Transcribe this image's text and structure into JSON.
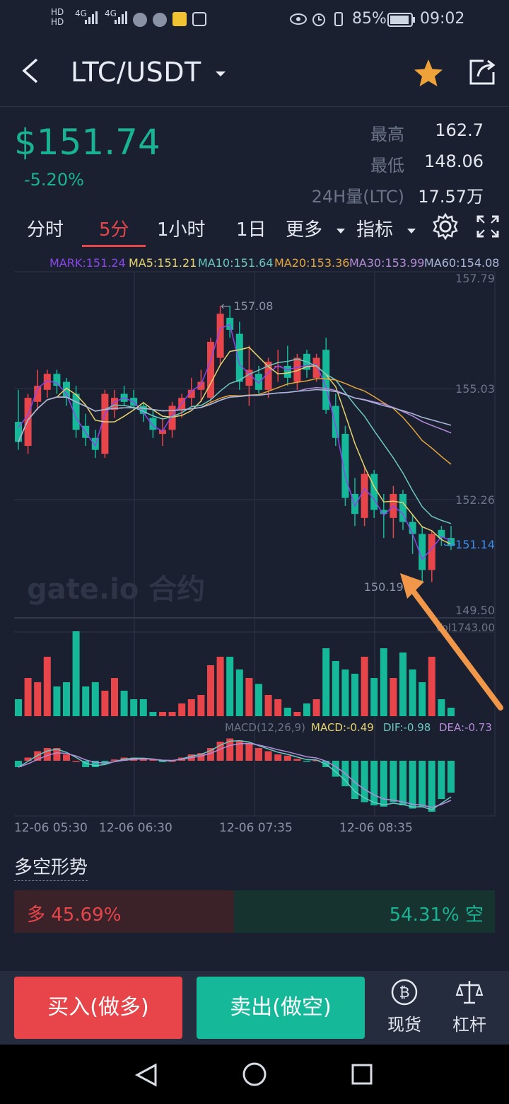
{
  "status_bar": {
    "network1": "4G",
    "network2": "4G",
    "battery": "85%",
    "time": "09:02"
  },
  "header": {
    "title": "LTC/USDT",
    "back_icon": "back-arrow-icon",
    "favorite_icon": "star-icon",
    "share_icon": "share-icon"
  },
  "ticker": {
    "price": "$151.74",
    "change": "-5.20%",
    "high_label": "最高",
    "high_value": "162.7",
    "low_label": "最低",
    "low_value": "148.06",
    "volume_label": "24H量(LTC)",
    "volume_value": "17.57万"
  },
  "tabs": [
    {
      "label": "分时"
    },
    {
      "label": "5分",
      "active": true
    },
    {
      "label": "1小时"
    },
    {
      "label": "1日"
    },
    {
      "label": "更多"
    },
    {
      "label": "指标"
    }
  ],
  "legend": {
    "mark": "MARK:151.24",
    "ma5": "MA5:151.21",
    "ma10": "MA10:151.64",
    "ma20": "MA20:153.36",
    "ma30": "MA30:153.99",
    "ma60": "MA60:154.08"
  },
  "watermark": "gate.io 合约",
  "chart_data": {
    "type": "candlestick",
    "price_axis": [
      "157.79",
      "155.03",
      "152.26",
      "149.50"
    ],
    "current_price_label": "151.14",
    "high_annotation": "157.08",
    "low_annotation": "150.19",
    "vol_label": "Vol1743.00",
    "macd_label": "MACD(12,26,9)",
    "macd_value": "MACD:-0.49",
    "dif_value": "DIF:-0.98",
    "dea_value": "DEA:-0.73",
    "time_labels": [
      "12-06 05:30",
      "12-06 06:30",
      "12-06 07:35",
      "12-06 08:35"
    ],
    "candles": [
      {
        "o": 154.2,
        "h": 155.0,
        "l": 153.5,
        "c": 153.7
      },
      {
        "o": 153.6,
        "h": 154.9,
        "l": 153.4,
        "c": 154.8
      },
      {
        "o": 154.7,
        "h": 155.5,
        "l": 154.5,
        "c": 155.1
      },
      {
        "o": 155.0,
        "h": 155.5,
        "l": 154.8,
        "c": 155.4
      },
      {
        "o": 155.4,
        "h": 155.5,
        "l": 154.9,
        "c": 155.1
      },
      {
        "o": 155.2,
        "h": 155.3,
        "l": 154.6,
        "c": 154.8
      },
      {
        "o": 154.9,
        "h": 155.1,
        "l": 153.8,
        "c": 154.0
      },
      {
        "o": 154.1,
        "h": 154.4,
        "l": 153.6,
        "c": 153.8
      },
      {
        "o": 153.8,
        "h": 154.0,
        "l": 153.3,
        "c": 153.5
      },
      {
        "o": 153.4,
        "h": 155.0,
        "l": 153.3,
        "c": 154.9
      },
      {
        "o": 154.5,
        "h": 155.0,
        "l": 154.3,
        "c": 154.8
      },
      {
        "o": 154.9,
        "h": 155.1,
        "l": 154.6,
        "c": 154.7
      },
      {
        "o": 154.8,
        "h": 155.0,
        "l": 154.5,
        "c": 154.6
      },
      {
        "o": 154.6,
        "h": 154.7,
        "l": 154.2,
        "c": 154.4
      },
      {
        "o": 154.3,
        "h": 154.5,
        "l": 153.8,
        "c": 154.0
      },
      {
        "o": 153.9,
        "h": 154.3,
        "l": 153.6,
        "c": 154.0
      },
      {
        "o": 154.0,
        "h": 154.7,
        "l": 153.8,
        "c": 154.6
      },
      {
        "o": 154.5,
        "h": 154.9,
        "l": 154.3,
        "c": 154.8
      },
      {
        "o": 154.8,
        "h": 155.3,
        "l": 154.6,
        "c": 155.0
      },
      {
        "o": 155.0,
        "h": 155.5,
        "l": 154.7,
        "c": 155.2
      },
      {
        "o": 154.8,
        "h": 156.3,
        "l": 154.7,
        "c": 156.2
      },
      {
        "o": 155.8,
        "h": 157.1,
        "l": 155.6,
        "c": 156.9
      },
      {
        "o": 156.8,
        "h": 157.1,
        "l": 156.3,
        "c": 156.5
      },
      {
        "o": 156.4,
        "h": 156.7,
        "l": 155.0,
        "c": 155.2
      },
      {
        "o": 155.1,
        "h": 156.1,
        "l": 154.6,
        "c": 155.5
      },
      {
        "o": 155.4,
        "h": 155.6,
        "l": 154.9,
        "c": 155.0
      },
      {
        "o": 155.0,
        "h": 155.8,
        "l": 154.8,
        "c": 155.7
      },
      {
        "o": 155.6,
        "h": 156.0,
        "l": 155.2,
        "c": 155.6
      },
      {
        "o": 155.6,
        "h": 156.1,
        "l": 155.1,
        "c": 155.3
      },
      {
        "o": 155.2,
        "h": 155.9,
        "l": 155.0,
        "c": 155.8
      },
      {
        "o": 155.9,
        "h": 156.0,
        "l": 155.3,
        "c": 155.5
      },
      {
        "o": 155.3,
        "h": 155.9,
        "l": 155.2,
        "c": 155.8
      },
      {
        "o": 156.0,
        "h": 156.3,
        "l": 154.4,
        "c": 154.5
      },
      {
        "o": 154.6,
        "h": 154.9,
        "l": 153.6,
        "c": 153.8
      },
      {
        "o": 153.9,
        "h": 154.1,
        "l": 152.1,
        "c": 152.3
      },
      {
        "o": 152.4,
        "h": 152.8,
        "l": 151.6,
        "c": 151.9
      },
      {
        "o": 151.8,
        "h": 153.1,
        "l": 151.6,
        "c": 152.9
      },
      {
        "o": 152.9,
        "h": 153.0,
        "l": 151.8,
        "c": 152.0
      },
      {
        "o": 152.0,
        "h": 152.4,
        "l": 151.3,
        "c": 151.9
      },
      {
        "o": 151.8,
        "h": 152.6,
        "l": 151.3,
        "c": 152.4
      },
      {
        "o": 152.4,
        "h": 152.5,
        "l": 151.5,
        "c": 151.7
      },
      {
        "o": 151.7,
        "h": 151.9,
        "l": 150.9,
        "c": 151.4
      },
      {
        "o": 151.4,
        "h": 151.6,
        "l": 150.2,
        "c": 150.5
      },
      {
        "o": 150.5,
        "h": 151.5,
        "l": 150.2,
        "c": 151.4
      },
      {
        "o": 151.5,
        "h": 151.6,
        "l": 151.1,
        "c": 151.3
      },
      {
        "o": 151.3,
        "h": 151.6,
        "l": 151.0,
        "c": 151.1
      }
    ],
    "volumes": [
      20,
      45,
      40,
      70,
      35,
      40,
      100,
      35,
      40,
      30,
      45,
      30,
      20,
      20,
      5,
      5,
      5,
      15,
      20,
      25,
      60,
      70,
      70,
      55,
      45,
      38,
      25,
      20,
      10,
      5,
      15,
      20,
      80,
      65,
      55,
      50,
      70,
      45,
      80,
      45,
      75,
      55,
      40,
      70,
      20,
      10
    ],
    "macd": [
      -0.1,
      0.05,
      0.15,
      0.2,
      0.2,
      0.1,
      0.0,
      -0.1,
      -0.1,
      -0.05,
      0.02,
      0.05,
      0.05,
      0.04,
      0.02,
      -0.02,
      0.0,
      0.05,
      0.1,
      0.12,
      0.2,
      0.3,
      0.35,
      0.32,
      0.28,
      0.2,
      0.15,
      0.1,
      0.08,
      0.03,
      -0.01,
      0.01,
      -0.1,
      -0.25,
      -0.4,
      -0.6,
      -0.65,
      -0.7,
      -0.72,
      -0.65,
      -0.7,
      -0.75,
      -0.72,
      -0.8,
      -0.6,
      -0.5
    ]
  },
  "long_short": {
    "title": "多空形势",
    "long_label": "多 45.69%",
    "short_label": "54.31% 空",
    "long_ratio": 0.4569
  },
  "bottom": {
    "buy_label": "买入(做多)",
    "sell_label": "卖出(做空)",
    "spot_label": "现货",
    "leverage_label": "杠杆",
    "spot_icon": "bitcoin-icon",
    "leverage_icon": "scale-icon"
  },
  "colors": {
    "up": "#e8454a",
    "down": "#15b99a",
    "ma5": "#e6d36d",
    "ma10": "#6cc8c0",
    "ma20": "#e4a43d",
    "ma30": "#b48bd8",
    "ma60": "#a9b7d9",
    "mark": "#8a46ea"
  }
}
